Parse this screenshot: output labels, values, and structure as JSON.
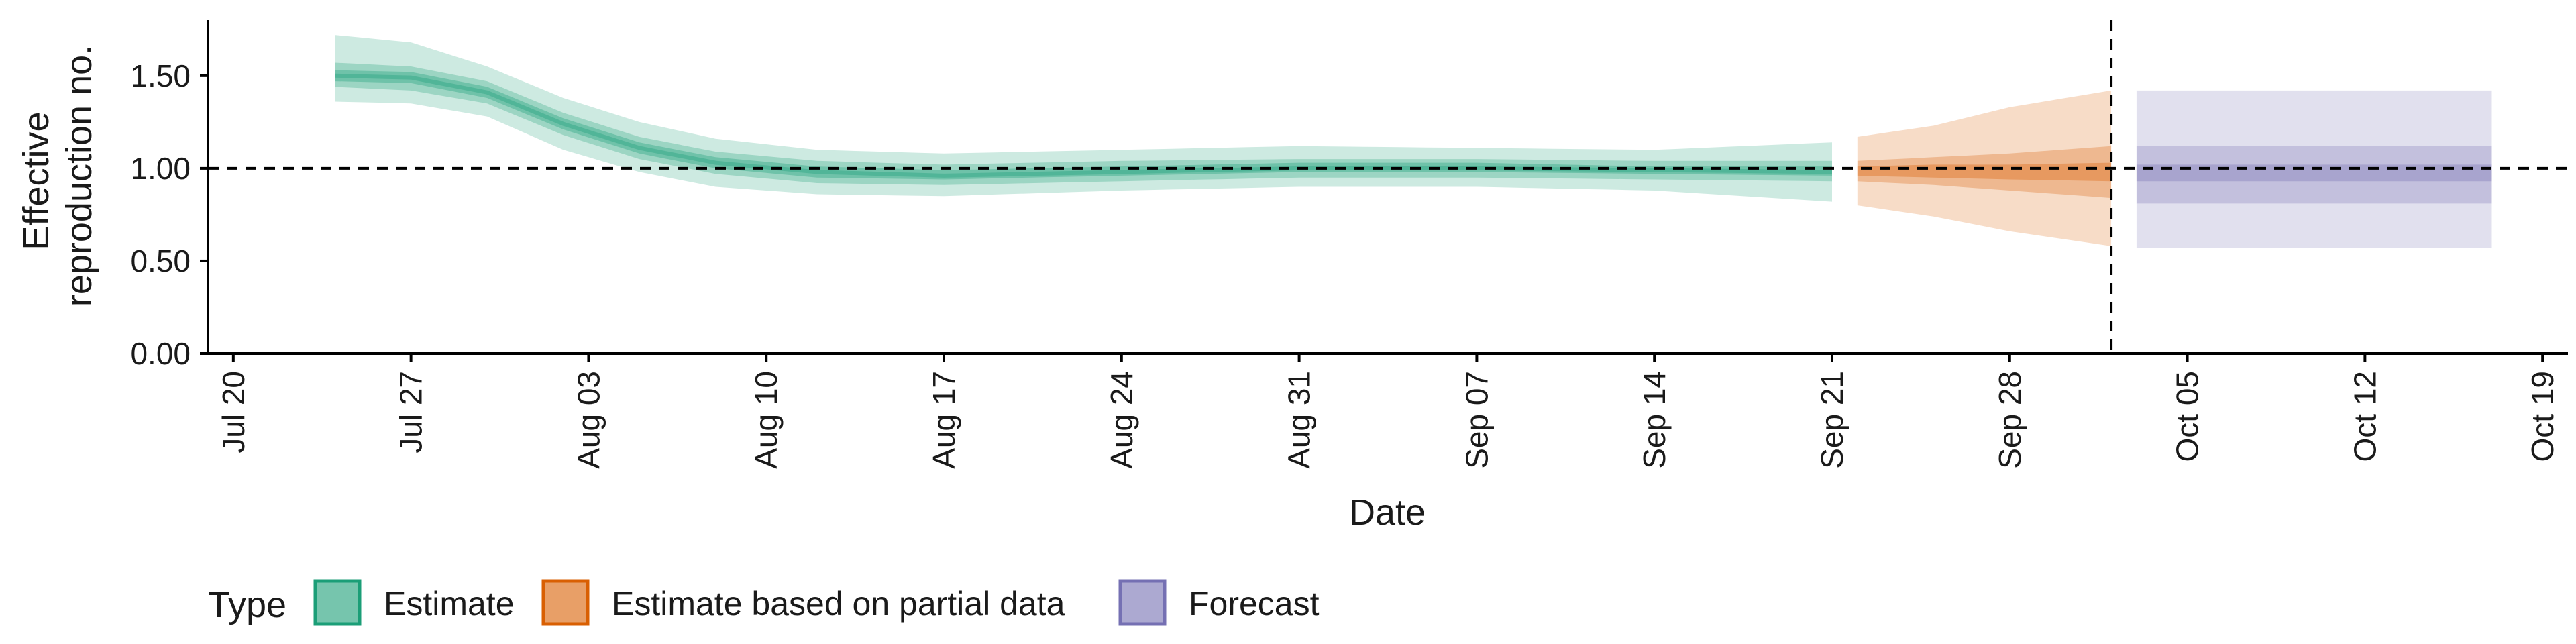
{
  "chart_data": {
    "type": "line",
    "xlabel": "Date",
    "ylabel_lines": [
      "Effective",
      "reproduction no."
    ],
    "ylim": [
      0,
      1.8
    ],
    "xlim": [
      "2020-07-19",
      "2020-10-20"
    ],
    "yticks": [
      0,
      0.5,
      1.0,
      1.5
    ],
    "ytick_labels": [
      "0.00",
      "0.50",
      "1.00",
      "1.50"
    ],
    "xticks": [
      "2020-07-20",
      "2020-07-27",
      "2020-08-03",
      "2020-08-10",
      "2020-08-17",
      "2020-08-24",
      "2020-08-31",
      "2020-09-07",
      "2020-09-14",
      "2020-09-21",
      "2020-09-28",
      "2020-10-05",
      "2020-10-12",
      "2020-10-19"
    ],
    "xtick_labels": [
      "Jul 20",
      "Jul 27",
      "Aug 03",
      "Aug 10",
      "Aug 17",
      "Aug 24",
      "Aug 31",
      "Sep 07",
      "Sep 14",
      "Sep 21",
      "Sep 28",
      "Oct 05",
      "Oct 12",
      "Oct 19"
    ],
    "reference_hline": 1.0,
    "reference_vline": "2020-10-02",
    "grid": false,
    "legend_position": "bottom",
    "legend_title": "Type",
    "series": [
      {
        "name": "Estimate",
        "color": "#1b9e77",
        "points": [
          {
            "date": "2020-07-24",
            "median": 1.5,
            "lo20": 1.47,
            "hi20": 1.53,
            "lo50": 1.44,
            "hi50": 1.57,
            "lo90": 1.36,
            "hi90": 1.72
          },
          {
            "date": "2020-07-27",
            "median": 1.49,
            "lo20": 1.46,
            "hi20": 1.52,
            "lo50": 1.42,
            "hi50": 1.55,
            "lo90": 1.35,
            "hi90": 1.68
          },
          {
            "date": "2020-07-30",
            "median": 1.41,
            "lo20": 1.38,
            "hi20": 1.44,
            "lo50": 1.35,
            "hi50": 1.47,
            "lo90": 1.28,
            "hi90": 1.55
          },
          {
            "date": "2020-08-02",
            "median": 1.24,
            "lo20": 1.21,
            "hi20": 1.27,
            "lo50": 1.18,
            "hi50": 1.3,
            "lo90": 1.1,
            "hi90": 1.38
          },
          {
            "date": "2020-08-05",
            "median": 1.11,
            "lo20": 1.08,
            "hi20": 1.14,
            "lo50": 1.05,
            "hi50": 1.17,
            "lo90": 0.98,
            "hi90": 1.25
          },
          {
            "date": "2020-08-08",
            "median": 1.03,
            "lo20": 1.0,
            "hi20": 1.06,
            "lo50": 0.97,
            "hi50": 1.09,
            "lo90": 0.9,
            "hi90": 1.16
          },
          {
            "date": "2020-08-12",
            "median": 0.98,
            "lo20": 0.95,
            "hi20": 1.01,
            "lo50": 0.92,
            "hi50": 1.04,
            "lo90": 0.86,
            "hi90": 1.1
          },
          {
            "date": "2020-08-17",
            "median": 0.96,
            "lo20": 0.94,
            "hi20": 0.99,
            "lo50": 0.91,
            "hi50": 1.02,
            "lo90": 0.85,
            "hi90": 1.08
          },
          {
            "date": "2020-08-24",
            "median": 0.98,
            "lo20": 0.96,
            "hi20": 1.01,
            "lo50": 0.93,
            "hi50": 1.04,
            "lo90": 0.88,
            "hi90": 1.1
          },
          {
            "date": "2020-08-31",
            "median": 1.0,
            "lo20": 0.98,
            "hi20": 1.03,
            "lo50": 0.95,
            "hi50": 1.05,
            "lo90": 0.9,
            "hi90": 1.12
          },
          {
            "date": "2020-09-07",
            "median": 1.0,
            "lo20": 0.98,
            "hi20": 1.03,
            "lo50": 0.95,
            "hi50": 1.05,
            "lo90": 0.9,
            "hi90": 1.11
          },
          {
            "date": "2020-09-14",
            "median": 0.99,
            "lo20": 0.97,
            "hi20": 1.01,
            "lo50": 0.94,
            "hi50": 1.04,
            "lo90": 0.88,
            "hi90": 1.1
          },
          {
            "date": "2020-09-21",
            "median": 0.98,
            "lo20": 0.96,
            "hi20": 1.01,
            "lo50": 0.93,
            "hi50": 1.04,
            "lo90": 0.82,
            "hi90": 1.14
          }
        ]
      },
      {
        "name": "Estimate based on partial data",
        "color": "#d95f02",
        "points": [
          {
            "date": "2020-09-22",
            "median": 0.98,
            "lo20": 0.96,
            "hi20": 1.01,
            "lo50": 0.93,
            "hi50": 1.04,
            "lo90": 0.8,
            "hi90": 1.17
          },
          {
            "date": "2020-09-25",
            "median": 0.98,
            "lo20": 0.95,
            "hi20": 1.02,
            "lo50": 0.91,
            "hi50": 1.06,
            "lo90": 0.74,
            "hi90": 1.23
          },
          {
            "date": "2020-09-28",
            "median": 0.98,
            "lo20": 0.94,
            "hi20": 1.02,
            "lo50": 0.88,
            "hi50": 1.08,
            "lo90": 0.66,
            "hi90": 1.33
          },
          {
            "date": "2020-10-02",
            "median": 0.98,
            "lo20": 0.93,
            "hi20": 1.03,
            "lo50": 0.84,
            "hi50": 1.12,
            "lo90": 0.58,
            "hi90": 1.42
          }
        ]
      },
      {
        "name": "Forecast",
        "color": "#7570b3",
        "points": [
          {
            "date": "2020-10-03",
            "median": 0.97,
            "lo20": 0.93,
            "hi20": 1.02,
            "lo50": 0.81,
            "hi50": 1.12,
            "lo90": 0.57,
            "hi90": 1.42
          },
          {
            "date": "2020-10-17",
            "median": 0.97,
            "lo20": 0.93,
            "hi20": 1.02,
            "lo50": 0.81,
            "hi50": 1.12,
            "lo90": 0.57,
            "hi90": 1.42
          }
        ]
      }
    ]
  }
}
